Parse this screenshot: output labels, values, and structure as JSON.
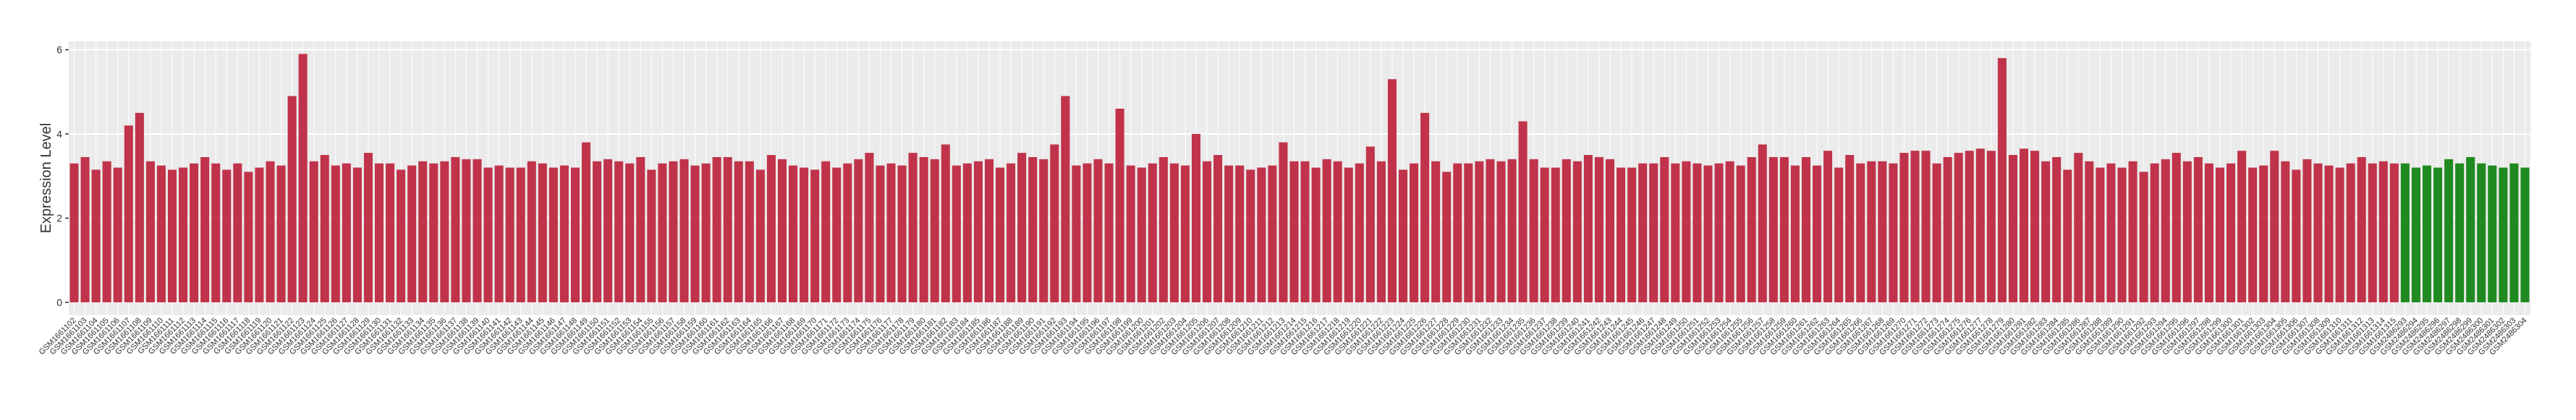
{
  "chart_data": {
    "type": "bar",
    "y_label": "Expression Level",
    "ylim": [
      -0.3,
      6.2
    ],
    "yticks": [
      0,
      2,
      4,
      6
    ],
    "grid": true,
    "series": [
      {
        "color": "#c0334a",
        "categories": [
          "GSM1661102",
          "GSM1661103",
          "GSM1661104",
          "GSM1661105",
          "GSM1661106",
          "GSM1661107",
          "GSM1661108",
          "GSM1661109",
          "GSM1661110",
          "GSM1661111",
          "GSM1661112",
          "GSM1661113",
          "GSM1661114",
          "GSM1661115",
          "GSM1661116",
          "GSM1661117",
          "GSM1661118",
          "GSM1661119",
          "GSM1661120",
          "GSM1661121",
          "GSM1661122",
          "GSM1661123",
          "GSM1661124",
          "GSM1661125",
          "GSM1661126",
          "GSM1661127",
          "GSM1661128",
          "GSM1661129",
          "GSM1661130",
          "GSM1661131",
          "GSM1661132",
          "GSM1661133",
          "GSM1661134",
          "GSM1661135",
          "GSM1661136",
          "GSM1661137",
          "GSM1661138",
          "GSM1661139",
          "GSM1661140",
          "GSM1661141",
          "GSM1661142",
          "GSM1661143",
          "GSM1661144",
          "GSM1661145",
          "GSM1661146",
          "GSM1661147",
          "GSM1661148",
          "GSM1661149",
          "GSM1661150",
          "GSM1661151",
          "GSM1661152",
          "GSM1661153",
          "GSM1661154",
          "GSM1661155",
          "GSM1661156",
          "GSM1661157",
          "GSM1661158",
          "GSM1661159",
          "GSM1661160",
          "GSM1661161",
          "GSM1661162",
          "GSM1661163",
          "GSM1661164",
          "GSM1661165",
          "GSM1661166",
          "GSM1661167",
          "GSM1661168",
          "GSM1661169",
          "GSM1661170",
          "GSM1661171",
          "GSM1661172",
          "GSM1661173",
          "GSM1661174",
          "GSM1661175",
          "GSM1661176",
          "GSM1661177",
          "GSM1661178",
          "GSM1661179",
          "GSM1661180",
          "GSM1661181",
          "GSM1661182",
          "GSM1661183",
          "GSM1661184",
          "GSM1661185",
          "GSM1661186",
          "GSM1661187",
          "GSM1661188",
          "GSM1661189",
          "GSM1661190",
          "GSM1661191",
          "GSM1661192",
          "GSM1661193",
          "GSM1661194",
          "GSM1661195",
          "GSM1661196",
          "GSM1661197",
          "GSM1661198",
          "GSM1661199",
          "GSM1661200",
          "GSM1661201",
          "GSM1661202",
          "GSM1661203",
          "GSM1661204",
          "GSM1661205",
          "GSM1661206",
          "GSM1661207",
          "GSM1661208",
          "GSM1661209",
          "GSM1661210",
          "GSM1661211",
          "GSM1661212",
          "GSM1661213",
          "GSM1661214",
          "GSM1661215",
          "GSM1661216",
          "GSM1661217",
          "GSM1661218",
          "GSM1661219",
          "GSM1661220",
          "GSM1661221",
          "GSM1661222",
          "GSM1661223",
          "GSM1661224",
          "GSM1661225",
          "GSM1661226",
          "GSM1661227",
          "GSM1661228",
          "GSM1661229",
          "GSM1661230",
          "GSM1661231",
          "GSM1661232",
          "GSM1661233",
          "GSM1661234",
          "GSM1661235",
          "GSM1661236",
          "GSM1661237",
          "GSM1661238",
          "GSM1661239",
          "GSM1661240",
          "GSM1661241",
          "GSM1661242",
          "GSM1661243",
          "GSM1661244",
          "GSM1661245",
          "GSM1661246",
          "GSM1661247",
          "GSM1661248",
          "GSM1661249",
          "GSM1661250",
          "GSM1661251",
          "GSM1661252",
          "GSM1661253",
          "GSM1661254",
          "GSM1661255",
          "GSM1661256",
          "GSM1661257",
          "GSM1661258",
          "GSM1661259",
          "GSM1661260",
          "GSM1661261",
          "GSM1661262",
          "GSM1661263",
          "GSM1661264",
          "GSM1661265",
          "GSM1661266",
          "GSM1661267",
          "GSM1661268",
          "GSM1661269",
          "GSM1661270",
          "GSM1661271",
          "GSM1661272",
          "GSM1661273",
          "GSM1661274",
          "GSM1661275",
          "GSM1661276",
          "GSM1661277",
          "GSM1661278",
          "GSM1661279",
          "GSM1661280",
          "GSM1661281",
          "GSM1661282",
          "GSM1661283",
          "GSM1661284",
          "GSM1661285",
          "GSM1661286",
          "GSM1661287",
          "GSM1661288",
          "GSM1661289",
          "GSM1661290",
          "GSM1661291",
          "GSM1661292",
          "GSM1661293",
          "GSM1661294",
          "GSM1661295",
          "GSM1661296",
          "GSM1661297",
          "GSM1661298",
          "GSM1661299",
          "GSM1661300",
          "GSM1661301",
          "GSM1661302",
          "GSM1661303",
          "GSM1661304",
          "GSM1661305",
          "GSM1661306",
          "GSM1661307",
          "GSM1661308",
          "GSM1661309",
          "GSM1661310",
          "GSM1661311",
          "GSM1661312",
          "GSM1661313",
          "GSM1661314",
          "GSM1661315"
        ],
        "values": [
          3.3,
          3.45,
          3.15,
          3.35,
          3.2,
          4.2,
          4.5,
          3.35,
          3.25,
          3.15,
          3.2,
          3.3,
          3.45,
          3.3,
          3.15,
          3.3,
          3.1,
          3.2,
          3.35,
          3.25,
          4.9,
          5.9,
          3.35,
          3.5,
          3.25,
          3.3,
          3.2,
          3.55,
          3.3,
          3.3,
          3.15,
          3.25,
          3.35,
          3.3,
          3.35,
          3.45,
          3.4,
          3.4,
          3.2,
          3.25,
          3.2,
          3.2,
          3.35,
          3.3,
          3.2,
          3.25,
          3.2,
          3.8,
          3.35,
          3.4,
          3.35,
          3.3,
          3.45,
          3.15,
          3.3,
          3.35,
          3.4,
          3.25,
          3.3,
          3.45,
          3.45,
          3.35,
          3.35,
          3.15,
          3.5,
          3.4,
          3.25,
          3.2,
          3.15,
          3.35,
          3.2,
          3.3,
          3.4,
          3.55,
          3.25,
          3.3,
          3.25,
          3.55,
          3.45,
          3.4,
          3.75,
          3.25,
          3.3,
          3.35,
          3.4,
          3.2,
          3.3,
          3.55,
          3.45,
          3.4,
          3.75,
          4.9,
          3.25,
          3.3,
          3.4,
          3.3,
          4.6,
          3.25,
          3.2,
          3.3,
          3.45,
          3.3,
          3.25,
          4.0,
          3.35,
          3.5,
          3.25,
          3.25,
          3.15,
          3.2,
          3.25,
          3.8,
          3.35,
          3.35,
          3.2,
          3.4,
          3.35,
          3.2,
          3.3,
          3.7,
          3.35,
          5.3,
          3.15,
          3.3,
          4.5,
          3.35,
          3.1,
          3.3,
          3.3,
          3.35,
          3.4,
          3.35,
          3.4,
          4.3,
          3.4,
          3.2,
          3.2,
          3.4,
          3.35,
          3.5,
          3.45,
          3.4,
          3.2,
          3.2,
          3.3,
          3.3,
          3.45,
          3.3,
          3.35,
          3.3,
          3.25,
          3.3,
          3.35,
          3.25,
          3.45,
          3.75,
          3.45,
          3.45,
          3.25,
          3.45,
          3.25,
          3.6,
          3.2,
          3.5,
          3.3,
          3.35,
          3.35,
          3.3,
          3.55,
          3.6,
          3.6,
          3.3,
          3.45,
          3.55,
          3.6,
          3.65,
          3.6,
          5.8,
          3.5,
          3.65,
          3.6,
          3.35,
          3.45,
          3.15,
          3.55,
          3.35,
          3.2,
          3.3,
          3.2,
          3.35,
          3.1,
          3.3,
          3.4,
          3.55,
          3.35,
          3.45,
          3.3,
          3.2,
          3.3,
          3.6,
          3.2,
          3.25,
          3.6,
          3.35,
          3.15,
          3.4,
          3.3,
          3.25,
          3.2,
          3.3,
          3.45,
          3.3,
          3.35,
          3.3
        ]
      },
      {
        "color": "#1f8a1f",
        "categories": [
          "GSM2486293",
          "GSM2486294",
          "GSM2486295",
          "GSM2486296",
          "GSM2486297",
          "GSM2486298",
          "GSM2486299",
          "GSM2486300",
          "GSM2486301",
          "GSM2486302",
          "GSM2486303",
          "GSM2486304"
        ],
        "values": [
          3.3,
          3.2,
          3.25,
          3.2,
          3.4,
          3.3,
          3.45,
          3.3,
          3.25,
          3.2,
          3.3,
          3.2
        ]
      }
    ]
  }
}
